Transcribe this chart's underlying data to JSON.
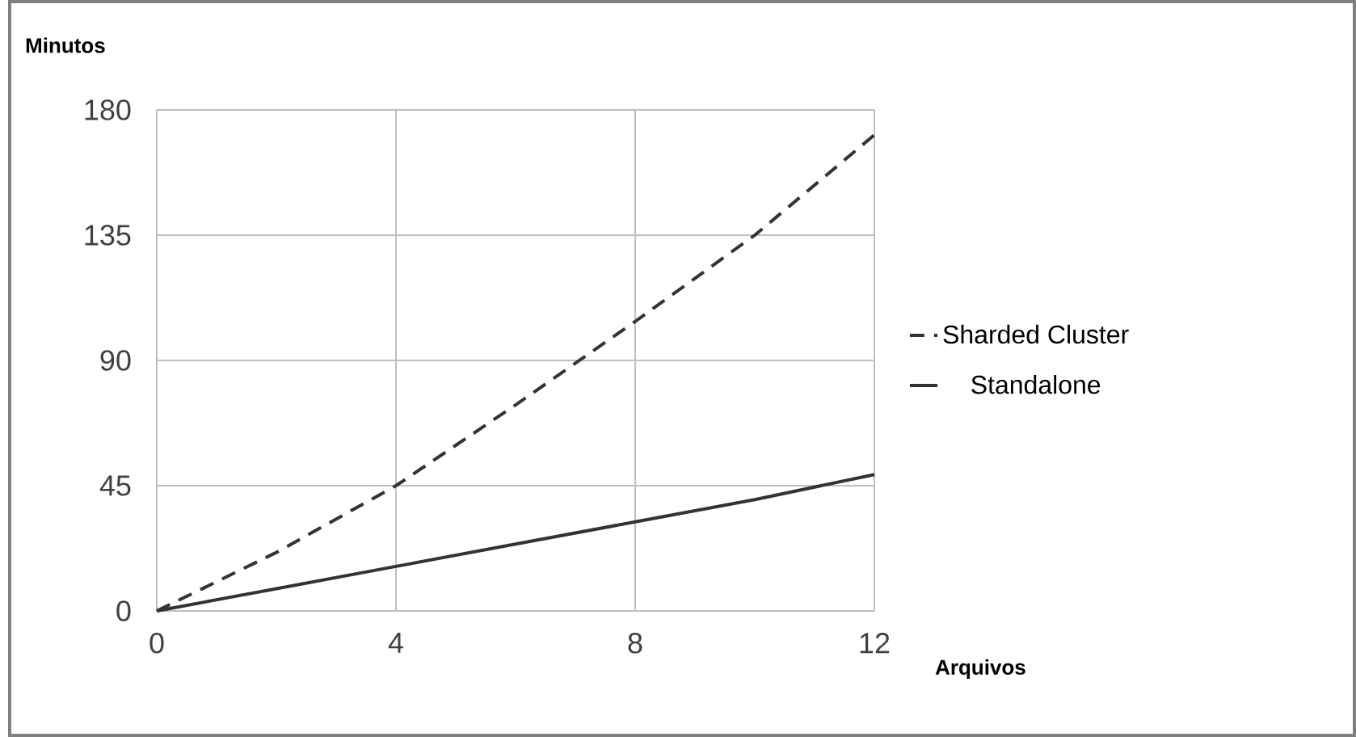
{
  "chart_data": {
    "type": "line",
    "xlabel": "Arquivos",
    "ylabel": "Minutos",
    "x": [
      0,
      2,
      4,
      6,
      8,
      10,
      12
    ],
    "series": [
      {
        "name": "Sharded Cluster",
        "color": "#333333",
        "line_style": "dashed",
        "values": [
          0,
          21,
          45,
          74,
          104,
          135,
          171
        ]
      },
      {
        "name": "Standalone",
        "color": "#333333",
        "line_style": "solid",
        "values": [
          0,
          8,
          16,
          24,
          32,
          40,
          49
        ]
      }
    ],
    "xlim": [
      0,
      12
    ],
    "ylim": [
      0,
      180
    ],
    "xticks": [
      0,
      4,
      8,
      12
    ],
    "yticks": [
      0,
      45,
      90,
      135,
      180
    ],
    "grid": true,
    "legend": "right",
    "marker": "none"
  }
}
